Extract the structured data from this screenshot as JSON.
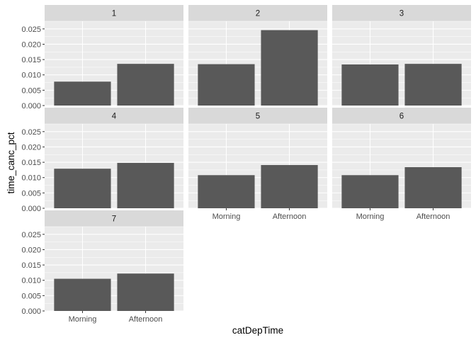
{
  "chart_data": {
    "type": "bar",
    "facet_by": "panel",
    "xlabel": "catDepTime",
    "ylabel": "time_canc_pct",
    "categories": [
      "Morning",
      "Afternoon"
    ],
    "ylim": [
      0,
      0.0275
    ],
    "y_ticks": [
      "0.000",
      "0.005",
      "0.010",
      "0.015",
      "0.020",
      "0.025"
    ],
    "y_tick_values": [
      0,
      0.005,
      0.01,
      0.015,
      0.02,
      0.025
    ],
    "grid": true,
    "bar_color": "#595959",
    "panel_bg": "#ebebeb",
    "strip_bg": "#d9d9d9",
    "panels": [
      {
        "label": "1",
        "values": [
          0.0078,
          0.0136
        ]
      },
      {
        "label": "2",
        "values": [
          0.0135,
          0.0246
        ]
      },
      {
        "label": "3",
        "values": [
          0.0134,
          0.0136
        ]
      },
      {
        "label": "4",
        "values": [
          0.0129,
          0.0148
        ]
      },
      {
        "label": "5",
        "values": [
          0.0108,
          0.0141
        ]
      },
      {
        "label": "6",
        "values": [
          0.0108,
          0.0134
        ]
      },
      {
        "label": "7",
        "values": [
          0.0105,
          0.0122
        ]
      }
    ]
  }
}
